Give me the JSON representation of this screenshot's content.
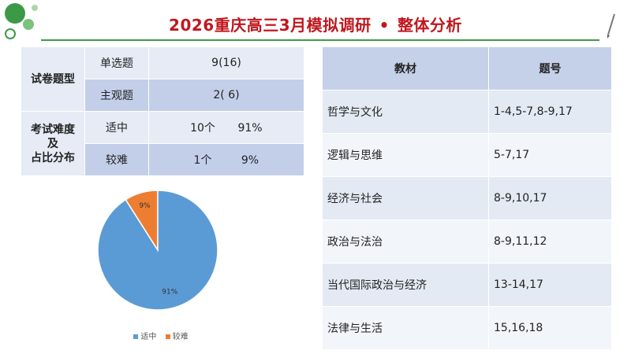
{
  "header": {
    "title": "2026重庆高三3月模拟调研",
    "separator": "•",
    "subtitle": "整体分析"
  },
  "question_types": {
    "section_label": "试卷题型",
    "rows": [
      {
        "type": "单选题",
        "value": "9(16)"
      },
      {
        "type": "主观题",
        "value": "2( 6)"
      }
    ]
  },
  "difficulty": {
    "section_label_line1": "考试难度",
    "section_label_line2": "及",
    "section_label_line3": "占比分布",
    "rows": [
      {
        "level": "适中",
        "count": "10个",
        "percent": "91%"
      },
      {
        "level": "较难",
        "count": "1个",
        "percent": "9%"
      }
    ]
  },
  "topics_table": {
    "headers": {
      "topic": "教材",
      "questions": "题号"
    },
    "rows": [
      {
        "topic": "哲学与文化",
        "questions": "1-4,5-7,8-9,17"
      },
      {
        "topic": "逻辑与思维",
        "questions": "5-7,17"
      },
      {
        "topic": "经济与社会",
        "questions": "8-9,10,17"
      },
      {
        "topic": "政治与法治",
        "questions": "8-9,11,12"
      },
      {
        "topic": "当代国际政治与经济",
        "questions": "13-14,17"
      },
      {
        "topic": "法律与生活",
        "questions": "15,16,18"
      }
    ]
  },
  "chart_data": {
    "type": "pie",
    "categories": [
      "适中",
      "较难"
    ],
    "values": [
      91,
      9
    ],
    "labels": [
      "91%",
      "9%"
    ],
    "colors": [
      "#5b9bd5",
      "#ed7d31"
    ],
    "legend_position": "bottom"
  }
}
